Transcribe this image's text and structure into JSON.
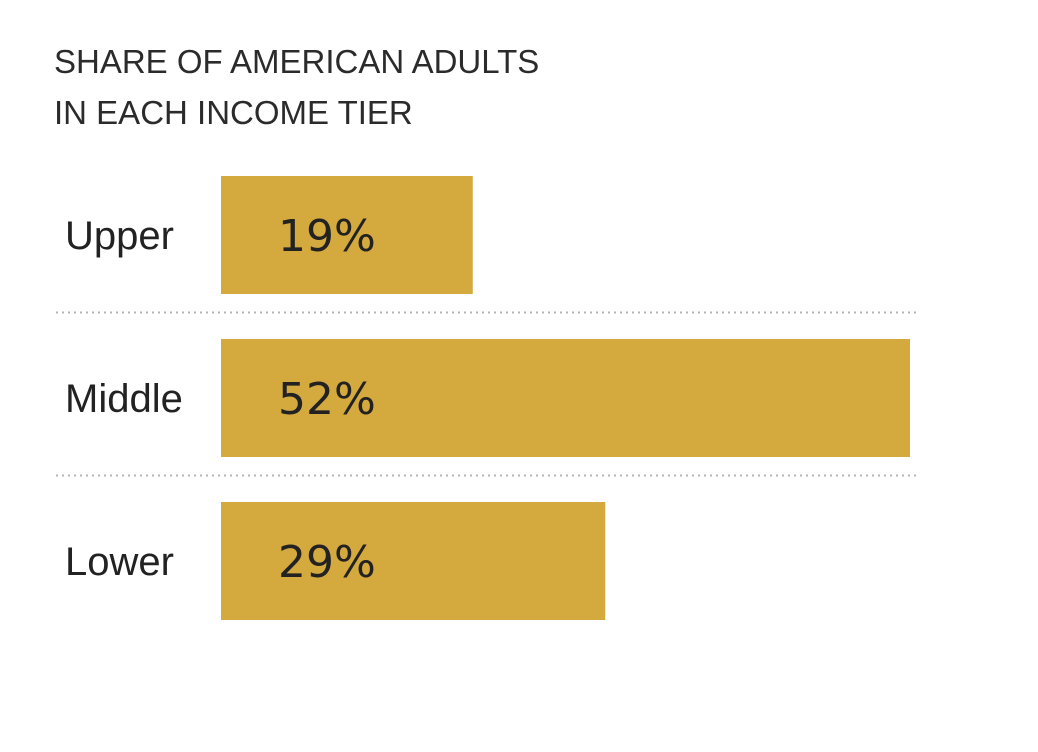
{
  "chart_data": {
    "type": "bar",
    "orientation": "horizontal",
    "title_lines": [
      "SHARE OF AMERICAN ADULTS",
      "IN EACH INCOME TIER"
    ],
    "categories": [
      "Upper",
      "Middle",
      "Lower"
    ],
    "values": [
      19,
      52,
      29
    ],
    "value_labels": [
      "19%",
      "52%",
      "29%"
    ],
    "unit": "%",
    "bar_color": "#d4a93e",
    "grid": false,
    "dividers": "dotted"
  }
}
